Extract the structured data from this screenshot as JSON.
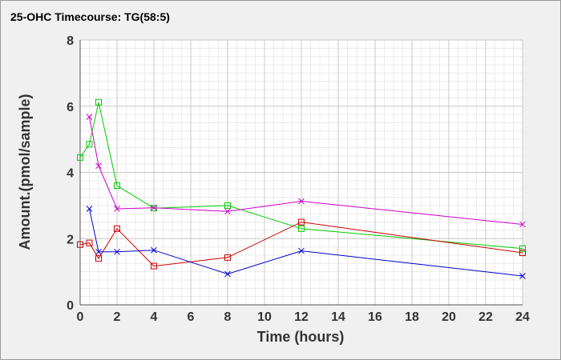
{
  "chart_data": {
    "type": "line",
    "title": "25-OHC Timecourse: TG(58:5)",
    "xlabel": "Time (hours)",
    "ylabel": "Amount.(pmol/sample)",
    "xlim": [
      0,
      24
    ],
    "ylim": [
      0,
      8
    ],
    "xticks": [
      0,
      2,
      4,
      6,
      8,
      10,
      12,
      14,
      16,
      18,
      20,
      22,
      24
    ],
    "yticks": [
      0,
      2,
      4,
      6,
      8
    ],
    "xminor": 0.5,
    "yminor": 0.25,
    "grid": true,
    "plot_background": "#ffffff",
    "page_background": "#f0f0f0",
    "major_grid_color": "#c8c8c8",
    "minor_grid_color": "#ececec",
    "series": [
      {
        "marker": "square",
        "color": "#00cc00",
        "x": [
          0,
          0.5,
          1,
          2,
          4,
          8,
          12,
          24
        ],
        "y": [
          4.45,
          4.85,
          6.12,
          3.6,
          2.92,
          3.0,
          2.3,
          1.7
        ]
      },
      {
        "marker": "cross",
        "color": "#cc00cc",
        "x": [
          0.5,
          1,
          2,
          4,
          8,
          12,
          24
        ],
        "y": [
          5.68,
          4.2,
          2.9,
          2.93,
          2.82,
          3.13,
          2.43
        ]
      },
      {
        "marker": "square",
        "color": "#cc0000",
        "x": [
          0,
          0.5,
          1,
          2,
          4,
          8,
          12,
          24
        ],
        "y": [
          1.82,
          1.87,
          1.4,
          2.3,
          1.17,
          1.43,
          2.5,
          1.57
        ]
      },
      {
        "marker": "cross",
        "color": "#0000cc",
        "x": [
          0.5,
          1,
          2,
          4,
          8,
          12,
          24
        ],
        "y": [
          2.9,
          1.6,
          1.6,
          1.65,
          0.93,
          1.63,
          0.87
        ]
      }
    ]
  }
}
